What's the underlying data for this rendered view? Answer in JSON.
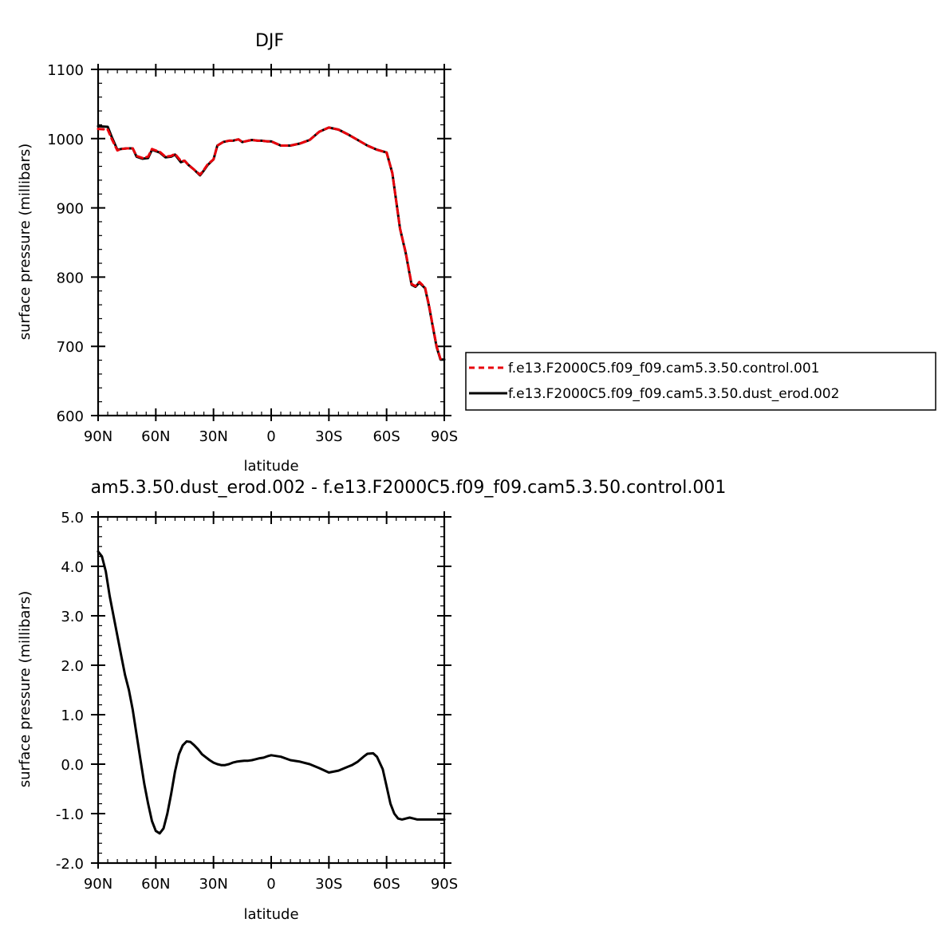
{
  "chart_data": [
    {
      "type": "line",
      "title": "DJF",
      "xlabel": "latitude",
      "ylabel": "surface pressure (millibars)",
      "xlim": [
        90,
        -90
      ],
      "ylim": [
        600,
        1100
      ],
      "x_ticks": [
        90,
        60,
        30,
        0,
        -30,
        -60,
        -90
      ],
      "x_tick_labels": [
        "90N",
        "60N",
        "30N",
        "0",
        "30S",
        "60S",
        "90S"
      ],
      "y_ticks": [
        600,
        700,
        800,
        900,
        1000,
        1100
      ],
      "y_tick_labels": [
        "600",
        "700",
        "800",
        "900",
        "1000",
        "1100"
      ],
      "legend_position": "right",
      "series": [
        {
          "name": "f.e13.F2000C5.f09_f09.cam5.3.50.control.001",
          "color": "#e8000b",
          "dash": "dashed",
          "x": [
            90,
            85,
            83,
            80,
            78,
            75,
            72,
            70,
            67,
            64,
            62,
            60,
            58,
            55,
            52,
            50,
            47,
            45,
            43,
            40,
            37,
            35,
            33,
            30,
            28,
            25,
            22,
            20,
            17,
            15,
            12,
            10,
            7,
            5,
            2,
            0,
            -5,
            -10,
            -15,
            -20,
            -25,
            -30,
            -35,
            -40,
            -45,
            -50,
            -55,
            -60,
            -63,
            -65,
            -67,
            -70,
            -73,
            -75,
            -77,
            -80,
            -82,
            -84,
            -86,
            -88,
            -90
          ],
          "y": [
            1014,
            1013,
            1000,
            983,
            985,
            986,
            986,
            975,
            972,
            974,
            985,
            983,
            981,
            974,
            975,
            978,
            968,
            968,
            962,
            955,
            948,
            955,
            963,
            970,
            990,
            995,
            997,
            997,
            999,
            995,
            997,
            998,
            997,
            997,
            996,
            996,
            990,
            990,
            993,
            998,
            1010,
            1016,
            1013,
            1006,
            998,
            990,
            984,
            980,
            950,
            910,
            870,
            835,
            790,
            787,
            793,
            785,
            760,
            730,
            700,
            682,
            682
          ]
        },
        {
          "name": "f.e13.F2000C5.f09_f09.cam5.3.50.dust_erod.002",
          "color": "#000000",
          "dash": "solid",
          "x": [
            90,
            85,
            83,
            80,
            78,
            75,
            72,
            70,
            67,
            64,
            62,
            60,
            58,
            55,
            52,
            50,
            47,
            45,
            43,
            40,
            37,
            35,
            33,
            30,
            28,
            25,
            22,
            20,
            17,
            15,
            12,
            10,
            7,
            5,
            2,
            0,
            -5,
            -10,
            -15,
            -20,
            -25,
            -30,
            -35,
            -40,
            -45,
            -50,
            -55,
            -60,
            -63,
            -65,
            -67,
            -70,
            -73,
            -75,
            -77,
            -80,
            -82,
            -84,
            -86,
            -88,
            -90
          ],
          "y": [
            1018,
            1017,
            1003,
            984,
            985,
            986,
            986,
            974,
            971,
            972,
            984,
            982,
            980,
            973,
            974,
            977,
            966,
            968,
            962,
            955,
            947,
            954,
            962,
            970,
            990,
            995,
            997,
            997,
            999,
            995,
            997,
            998,
            997,
            997,
            996,
            996,
            990,
            990,
            993,
            998,
            1010,
            1016,
            1013,
            1006,
            998,
            990,
            984,
            980,
            950,
            910,
            870,
            834,
            789,
            786,
            792,
            784,
            759,
            729,
            699,
            681,
            681
          ]
        }
      ]
    },
    {
      "type": "line",
      "title": "am5.3.50.dust_erod.002 - f.e13.F2000C5.f09_f09.cam5.3.50.control.001",
      "xlabel": "latitude",
      "ylabel": "surface pressure (millibars)",
      "xlim": [
        90,
        -90
      ],
      "ylim": [
        -2.0,
        5.0
      ],
      "x_ticks": [
        90,
        60,
        30,
        0,
        -30,
        -60,
        -90
      ],
      "x_tick_labels": [
        "90N",
        "60N",
        "30N",
        "0",
        "30S",
        "60S",
        "90S"
      ],
      "y_ticks": [
        -2,
        -1,
        0,
        1,
        2,
        3,
        4,
        5
      ],
      "y_tick_labels": [
        "-2.0",
        "-1.0",
        "0.0",
        "1.0",
        "2.0",
        "3.0",
        "4.0",
        "5.0"
      ],
      "series": [
        {
          "color": "#000000",
          "dash": "solid",
          "x": [
            90,
            88,
            86,
            84,
            82,
            80,
            78,
            76,
            74,
            72,
            70,
            68,
            66,
            64,
            62,
            60,
            58,
            56,
            54,
            52,
            50,
            48,
            46,
            44,
            42,
            40,
            38,
            36,
            34,
            32,
            30,
            28,
            26,
            24,
            22,
            20,
            18,
            16,
            14,
            12,
            10,
            8,
            6,
            4,
            2,
            0,
            -5,
            -10,
            -15,
            -20,
            -25,
            -30,
            -35,
            -40,
            -42,
            -45,
            -48,
            -50,
            -53,
            -55,
            -58,
            -60,
            -62,
            -64,
            -66,
            -68,
            -70,
            -72,
            -74,
            -76,
            -78,
            -80,
            -82,
            -84,
            -86,
            -88,
            -90
          ],
          "y": [
            4.3,
            4.2,
            3.9,
            3.4,
            3.0,
            2.6,
            2.2,
            1.8,
            1.5,
            1.1,
            0.6,
            0.1,
            -0.4,
            -0.8,
            -1.15,
            -1.35,
            -1.4,
            -1.3,
            -1.0,
            -0.6,
            -0.15,
            0.2,
            0.38,
            0.46,
            0.45,
            0.38,
            0.3,
            0.2,
            0.14,
            0.08,
            0.03,
            0.0,
            -0.02,
            -0.02,
            0.0,
            0.03,
            0.05,
            0.06,
            0.07,
            0.07,
            0.08,
            0.1,
            0.12,
            0.13,
            0.16,
            0.18,
            0.15,
            0.08,
            0.05,
            0.0,
            -0.08,
            -0.17,
            -0.13,
            -0.05,
            -0.02,
            0.05,
            0.15,
            0.21,
            0.22,
            0.15,
            -0.1,
            -0.45,
            -0.8,
            -1.0,
            -1.1,
            -1.12,
            -1.1,
            -1.08,
            -1.1,
            -1.12,
            -1.12,
            -1.12,
            -1.12,
            -1.12,
            -1.12,
            -1.12,
            -1.12
          ]
        }
      ]
    }
  ]
}
